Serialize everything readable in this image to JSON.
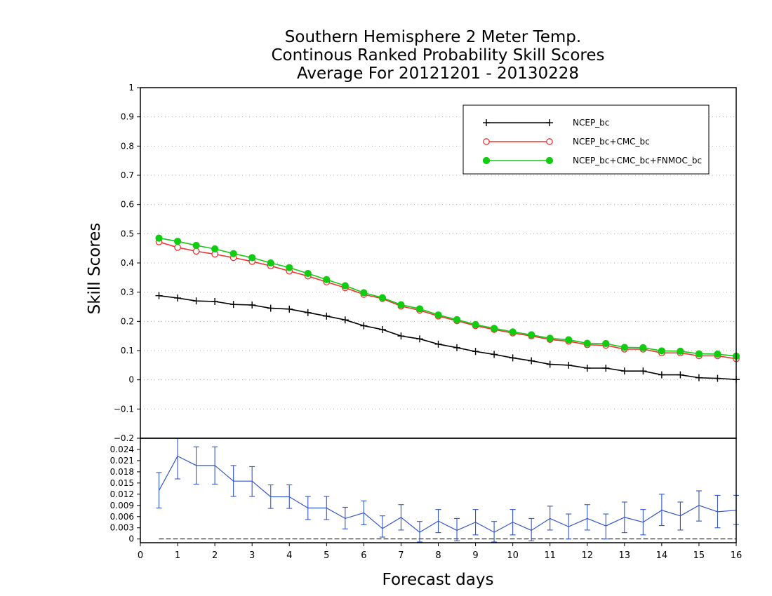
{
  "chart_data": [
    {
      "type": "line",
      "title_lines": [
        "Southern Hemisphere 2 Meter Temp.",
        "Continous Ranked Probability Skill Scores",
        "Average For 20121201 - 20130228"
      ],
      "ylabel": "Skill Scores",
      "ylim": [
        -0.2,
        1
      ],
      "yticks": [
        "1",
        "0.9",
        "0.8",
        "0.7",
        "0.6",
        "0.5",
        "0.4",
        "0.3",
        "0.2",
        "0.1",
        "0",
        "−0.1",
        "−0.2"
      ],
      "ytick_values": [
        1,
        0.9,
        0.8,
        0.7,
        0.6,
        0.5,
        0.4,
        0.3,
        0.2,
        0.1,
        0,
        -0.1,
        -0.2
      ],
      "grid": "horizontal dotted",
      "legend_position": "top-right",
      "x": [
        0.5,
        1,
        1.5,
        2,
        2.5,
        3,
        3.5,
        4,
        4.5,
        5,
        5.5,
        6,
        6.5,
        7,
        7.5,
        8,
        8.5,
        9,
        9.5,
        10,
        10.5,
        11,
        11.5,
        12,
        12.5,
        13,
        13.5,
        14,
        14.5,
        15,
        15.5,
        16
      ],
      "series": [
        {
          "name": "NCEP_bc",
          "color": "#000000",
          "marker": "plus",
          "values": [
            0.288,
            0.28,
            0.27,
            0.268,
            0.258,
            0.256,
            0.245,
            0.242,
            0.23,
            0.218,
            0.205,
            0.185,
            0.172,
            0.15,
            0.14,
            0.122,
            0.11,
            0.097,
            0.087,
            0.075,
            0.065,
            0.053,
            0.05,
            0.04,
            0.04,
            0.03,
            0.03,
            0.017,
            0.017,
            0.007,
            0.005,
            0.001
          ]
        },
        {
          "name": "NCEP_bc+CMC_bc",
          "color": "#ee3333",
          "marker": "open-circle",
          "values": [
            0.472,
            0.453,
            0.44,
            0.43,
            0.418,
            0.405,
            0.39,
            0.372,
            0.355,
            0.335,
            0.315,
            0.292,
            0.278,
            0.252,
            0.238,
            0.218,
            0.202,
            0.185,
            0.172,
            0.16,
            0.15,
            0.138,
            0.132,
            0.12,
            0.118,
            0.105,
            0.105,
            0.092,
            0.092,
            0.082,
            0.082,
            0.072
          ]
        },
        {
          "name": "NCEP_bc+CMC_bc+FNMOC_bc",
          "color": "#11cc11",
          "marker": "filled-circle",
          "values": [
            0.485,
            0.474,
            0.46,
            0.448,
            0.432,
            0.418,
            0.4,
            0.384,
            0.364,
            0.343,
            0.322,
            0.298,
            0.281,
            0.257,
            0.243,
            0.222,
            0.206,
            0.189,
            0.176,
            0.164,
            0.154,
            0.142,
            0.137,
            0.125,
            0.124,
            0.111,
            0.11,
            0.099,
            0.098,
            0.089,
            0.088,
            0.081
          ]
        }
      ]
    },
    {
      "type": "line",
      "subtype": "difference with error bars",
      "xlabel": "Forecast days",
      "xlim": [
        0,
        16
      ],
      "xticks": [
        "0",
        "1",
        "2",
        "3",
        "4",
        "5",
        "6",
        "7",
        "8",
        "9",
        "10",
        "11",
        "12",
        "13",
        "14",
        "15",
        "16"
      ],
      "ylim": [
        -0.001,
        0.027
      ],
      "yticks": [
        "0.024",
        "0.021",
        "0.018",
        "0.015",
        "0.012",
        "0.009",
        "0.006",
        "0.003",
        "0"
      ],
      "ytick_values": [
        0.024,
        0.021,
        0.018,
        0.015,
        0.012,
        0.009,
        0.006,
        0.003,
        0
      ],
      "baseline": 0,
      "x": [
        0.5,
        1,
        1.5,
        2,
        2.5,
        3,
        3.5,
        4,
        4.5,
        5,
        5.5,
        6,
        6.5,
        7,
        7.5,
        8,
        8.5,
        9,
        9.5,
        10,
        10.5,
        11,
        11.5,
        12,
        12.5,
        13,
        13.5,
        14,
        14.5,
        15,
        15.5,
        16
      ],
      "series": [
        {
          "color": "#3355cc",
          "values": [
            0.013,
            0.0222,
            0.0197,
            0.0197,
            0.0155,
            0.0155,
            0.0113,
            0.0113,
            0.0083,
            0.0083,
            0.0055,
            0.007,
            0.0028,
            0.0058,
            0.0018,
            0.0048,
            0.0023,
            0.0045,
            0.0018,
            0.0045,
            0.0023,
            0.0055,
            0.0033,
            0.0055,
            0.0035,
            0.0058,
            0.0045,
            0.0077,
            0.0062,
            0.009,
            0.0073,
            0.0077
          ],
          "error_low": [
            0.0083,
            0.0161,
            0.0147,
            0.0147,
            0.0114,
            0.0114,
            0.0082,
            0.0082,
            0.0052,
            0.0052,
            0.0027,
            0.0038,
            0.0005,
            0.0024,
            -0.0008,
            0.0017,
            -0.0005,
            0.0011,
            -0.0008,
            0.0011,
            -0.0005,
            0.0024,
            0.0,
            0.0024,
            0.0,
            0.0017,
            0.0011,
            0.0036,
            0.0024,
            0.0048,
            0.003,
            0.0039
          ],
          "error_high": [
            0.0178,
            0.0279,
            0.0247,
            0.0247,
            0.0197,
            0.0194,
            0.0145,
            0.0145,
            0.0114,
            0.0114,
            0.0085,
            0.0102,
            0.0062,
            0.0092,
            0.0047,
            0.0079,
            0.0055,
            0.0079,
            0.0047,
            0.0079,
            0.0055,
            0.0088,
            0.0067,
            0.0092,
            0.0067,
            0.0099,
            0.0079,
            0.012,
            0.0099,
            0.0129,
            0.0117,
            0.0117
          ]
        }
      ]
    }
  ]
}
